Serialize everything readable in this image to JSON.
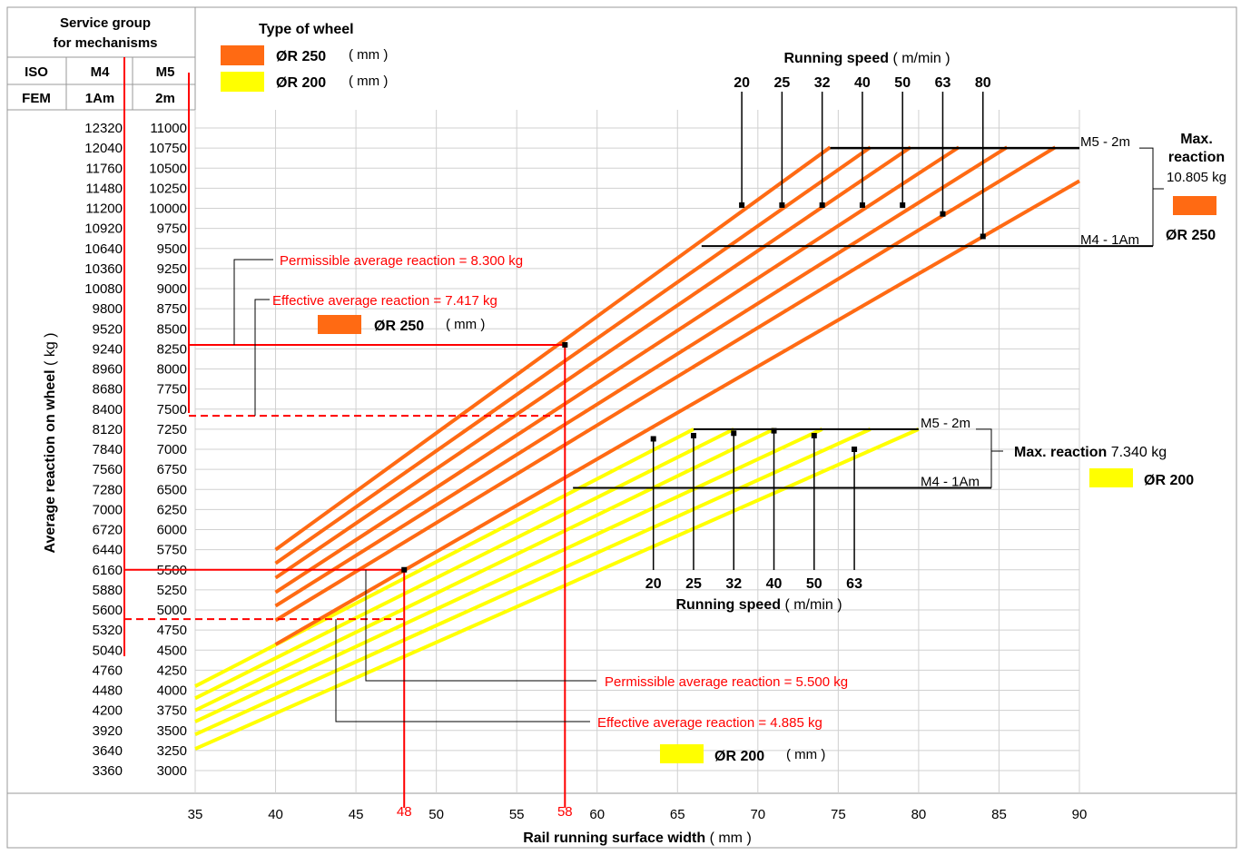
{
  "header": {
    "service_group_line1": "Service group",
    "service_group_line2": "for mechanisms",
    "iso_label": "ISO",
    "fem_label": "FEM",
    "iso_m4": "M4",
    "iso_m5": "M5",
    "fem_m4": "1Am",
    "fem_m5": "2m"
  },
  "legend": {
    "title": "Type of wheel",
    "items": [
      {
        "symbol": "ØR",
        "size": "250",
        "unit": "( mm )",
        "color": "#ff6a13"
      },
      {
        "symbol": "ØR",
        "size": "200",
        "unit": "( mm )",
        "color": "#ffff00"
      }
    ]
  },
  "colors": {
    "orange": "#ff6a13",
    "yellow": "#ffff00",
    "red": "#ff0000",
    "grid": "#d0d0d0"
  },
  "chart_data": {
    "type": "line",
    "xlabel": "Rail running surface width",
    "xlabel_unit": "( mm )",
    "ylabel": "Average reaction on wheel",
    "ylabel_unit": "( kg )",
    "x_ticks": [
      "35",
      "40",
      "45",
      "50",
      "55",
      "60",
      "65",
      "70",
      "75",
      "80",
      "85",
      "90"
    ],
    "xlim": [
      35,
      90
    ],
    "ylim_m5": [
      3000,
      11000
    ],
    "y_ticks_m4": [
      "12320",
      "12040",
      "11760",
      "11480",
      "11200",
      "10920",
      "10640",
      "10360",
      "10080",
      "9800",
      "9520",
      "9240",
      "8960",
      "8680",
      "8400",
      "8120",
      "7840",
      "7560",
      "7280",
      "7000",
      "6720",
      "6440",
      "6160",
      "5880",
      "5600",
      "5320",
      "5040",
      "4760",
      "4480",
      "4200",
      "3920",
      "3640",
      "3360"
    ],
    "y_ticks_m5": [
      "11000",
      "10750",
      "10500",
      "10250",
      "10000",
      "9750",
      "9500",
      "9250",
      "9000",
      "8750",
      "8500",
      "8250",
      "8000",
      "7750",
      "7500",
      "7250",
      "7000",
      "6750",
      "6500",
      "6250",
      "6000",
      "5750",
      "5500",
      "5250",
      "5000",
      "4750",
      "4500",
      "4250",
      "4000",
      "3750",
      "3500",
      "3250",
      "3000"
    ],
    "series_r250": {
      "color": "#ff6a13",
      "x_start": 40,
      "speeds": [
        "20",
        "25",
        "32",
        "40",
        "50",
        "63",
        "80"
      ],
      "lines": [
        {
          "speed": "20",
          "points": [
            [
              40,
              5750
            ],
            [
              74.5,
              10760
            ]
          ]
        },
        {
          "speed": "25",
          "points": [
            [
              40,
              5580
            ],
            [
              77,
              10760
            ]
          ]
        },
        {
          "speed": "32",
          "points": [
            [
              40,
              5400
            ],
            [
              79.5,
              10760
            ]
          ]
        },
        {
          "speed": "40",
          "points": [
            [
              40,
              5220
            ],
            [
              82.5,
              10760
            ]
          ]
        },
        {
          "speed": "50",
          "points": [
            [
              40,
              5050
            ],
            [
              85.5,
              10760
            ]
          ]
        },
        {
          "speed": "63",
          "points": [
            [
              40,
              4870
            ],
            [
              88.5,
              10760
            ]
          ]
        },
        {
          "speed": "80",
          "points": [
            [
              40,
              4570
            ],
            [
              90,
              10340
            ]
          ]
        }
      ]
    },
    "series_r200": {
      "color": "#ffff00",
      "x_start": 35,
      "speeds": [
        "20",
        "25",
        "32",
        "40",
        "50",
        "63"
      ],
      "lines": [
        {
          "speed": "20",
          "points": [
            [
              35,
              4050
            ],
            [
              66,
              7250
            ]
          ]
        },
        {
          "speed": "25",
          "points": [
            [
              35,
              3900
            ],
            [
              68.5,
              7250
            ]
          ]
        },
        {
          "speed": "32",
          "points": [
            [
              35,
              3750
            ],
            [
              71,
              7250
            ]
          ]
        },
        {
          "speed": "40",
          "points": [
            [
              35,
              3610
            ],
            [
              74,
              7250
            ]
          ]
        },
        {
          "speed": "50",
          "points": [
            [
              35,
              3450
            ],
            [
              77,
              7250
            ]
          ]
        },
        {
          "speed": "63",
          "points": [
            [
              35,
              3270
            ],
            [
              80,
              7250
            ]
          ]
        }
      ]
    },
    "speed_markers_r250": [
      {
        "label": "20",
        "x": 69,
        "y": 10040
      },
      {
        "label": "25",
        "x": 71.5,
        "y": 10040
      },
      {
        "label": "32",
        "x": 74,
        "y": 10040
      },
      {
        "label": "40",
        "x": 76.5,
        "y": 10040
      },
      {
        "label": "50",
        "x": 79,
        "y": 10040
      },
      {
        "label": "63",
        "x": 81.5,
        "y": 9930
      },
      {
        "label": "80",
        "x": 84,
        "y": 9650
      }
    ],
    "speed_markers_r200": [
      {
        "label": "20",
        "x": 63.5,
        "y": 7130
      },
      {
        "label": "25",
        "x": 66,
        "y": 7170
      },
      {
        "label": "32",
        "x": 68.5,
        "y": 7200
      },
      {
        "label": "40",
        "x": 71,
        "y": 7230
      },
      {
        "label": "50",
        "x": 73.5,
        "y": 7170
      },
      {
        "label": "63",
        "x": 76,
        "y": 7000
      }
    ],
    "running_speed_label": "Running speed",
    "running_speed_unit": "( m/min )",
    "bands": [
      {
        "wheel": "250",
        "top_label": "M5 - 2m",
        "bottom_label": "M4 - 1Am",
        "top_y": 10750,
        "bottom_y": 9530,
        "x_from": 74.5,
        "x_to": 90,
        "bottom_x_from": 66.5
      },
      {
        "wheel": "200",
        "top_label": "M5 - 2m",
        "bottom_label": "M4 - 1Am",
        "top_y": 7250,
        "bottom_y": 6520,
        "x_from": 66,
        "x_to": 80,
        "bottom_x_from": 58.5
      }
    ],
    "max_reaction_250": {
      "title_line1": "Max.",
      "title_line2": "reaction",
      "value": "10.805 kg",
      "symbol": "ØR",
      "size": "250"
    },
    "max_reaction_200": {
      "title": "Max. reaction",
      "value": "7.340 kg",
      "symbol": "ØR",
      "size": "200"
    },
    "annotations": [
      {
        "text": "Permissible average reaction = 8.300 kg",
        "x": 58,
        "y": 8300
      },
      {
        "text": "Effective average reaction = 7.417 kg",
        "x": 58,
        "y": 7417
      },
      {
        "text": "Permissible average reaction = 5.500 kg",
        "x": 48,
        "y": 5500
      },
      {
        "text": "Effective average reaction = 4.885 kg",
        "x": 48,
        "y": 4885
      }
    ],
    "inline_legend_250": {
      "symbol": "ØR",
      "size": "250",
      "unit": "( mm )"
    },
    "inline_legend_200": {
      "symbol": "ØR",
      "size": "200",
      "unit": "( mm )"
    },
    "highlight_x": [
      "48",
      "58"
    ]
  }
}
